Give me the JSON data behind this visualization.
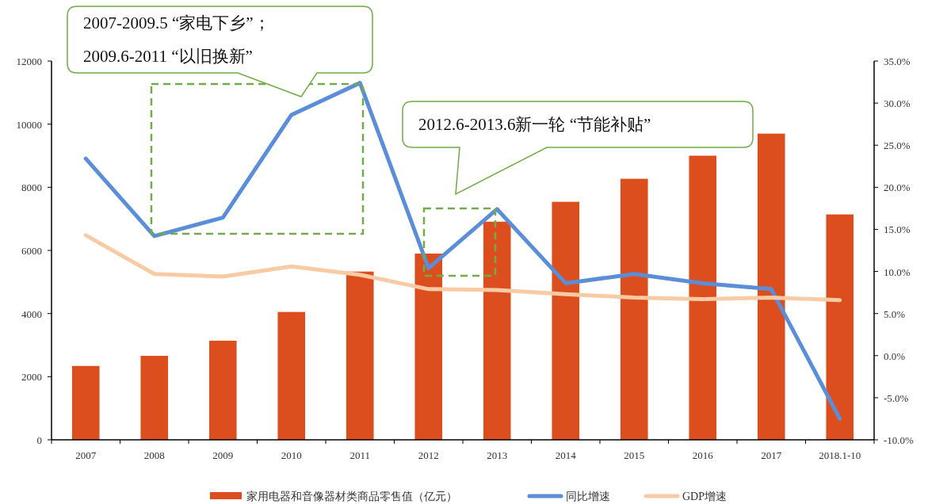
{
  "chart_data": {
    "type": "bar",
    "categories": [
      "2007",
      "2008",
      "2009",
      "2010",
      "2011",
      "2012",
      "2013",
      "2014",
      "2015",
      "2016",
      "2017",
      "2018.1-10"
    ],
    "series": [
      {
        "name": "家用电器和音像器材类商品零售值（亿元）",
        "color": "#dc4e1e",
        "values": [
          2340,
          2660,
          3140,
          4050,
          5330,
          5900,
          6910,
          7540,
          8270,
          9000,
          9700,
          7140
        ]
      },
      {
        "name": "同比增速",
        "type": "line",
        "axis": "y2",
        "color": "#5b8ed8",
        "values": [
          23.4,
          14.2,
          16.4,
          28.6,
          32.4,
          10.4,
          17.4,
          8.6,
          9.7,
          8.6,
          7.9,
          -7.5
        ]
      },
      {
        "name": "GDP增速",
        "type": "line",
        "axis": "y2",
        "color": "#f9cba4",
        "values": [
          14.3,
          9.7,
          9.4,
          10.6,
          9.6,
          7.9,
          7.8,
          7.3,
          6.9,
          6.7,
          6.9,
          6.6
        ]
      }
    ],
    "ylim": [
      0,
      12000
    ],
    "yticks": [
      0,
      2000,
      4000,
      6000,
      8000,
      10000,
      12000
    ],
    "y2lim": [
      -10,
      35
    ],
    "y2ticks": [
      {
        "value": -10,
        "label": "-10.0%"
      },
      {
        "value": -5,
        "label": "-5.0%"
      },
      {
        "value": 0,
        "label": "0.0%"
      },
      {
        "value": 5,
        "label": "5.0%"
      },
      {
        "value": 10,
        "label": "10.0%"
      },
      {
        "value": 15,
        "label": "15.0%"
      },
      {
        "value": 20,
        "label": "20.0%"
      },
      {
        "value": 25,
        "label": "25.0%"
      },
      {
        "value": 30,
        "label": "30.0%"
      },
      {
        "value": 35,
        "label": "35.0%"
      }
    ],
    "legend": "bottom",
    "line_style": "solid",
    "annotations": [
      "2007-2009.5 “家电下乡”；",
      "2009.6-2011 “以旧换新”",
      "2012.6-2013.6新一轮 “节能补贴”"
    ]
  }
}
